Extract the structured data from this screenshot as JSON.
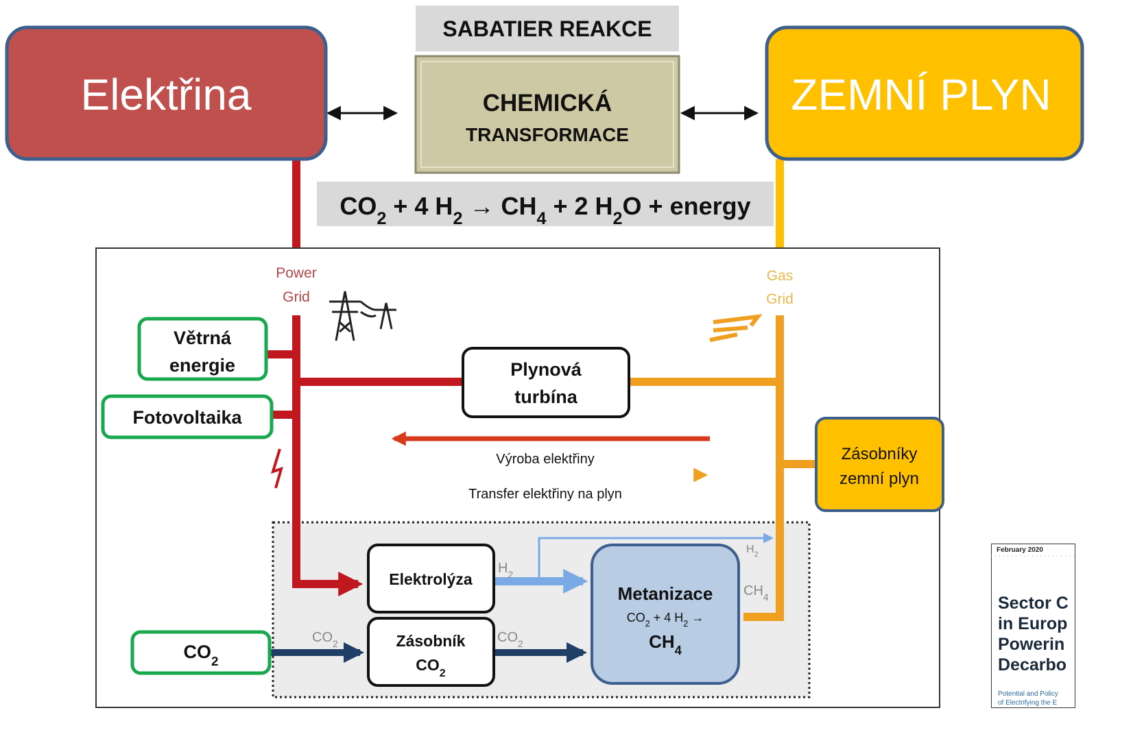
{
  "header": {
    "title": "SABATIER REAKCE"
  },
  "transform": {
    "line1": "CHEMICKÁ",
    "line2": "TRANSFORMACE"
  },
  "left_node": "Elektřina",
  "right_node": "ZEMNÍ PLYN",
  "equation": [
    "CO",
    "2",
    " + 4 H",
    "2",
    " → CH",
    "4",
    " + 2 H",
    "2",
    "O + energy"
  ],
  "grid_labels": {
    "power": [
      "Power",
      "Grid"
    ],
    "gas": [
      "Gas",
      "Grid"
    ]
  },
  "sources": {
    "wind": [
      "Větrná",
      "energie"
    ],
    "pv": "Fotovoltaika",
    "co2": [
      "CO",
      "2"
    ]
  },
  "turbine": [
    "Plynová",
    "turbína"
  ],
  "flows": {
    "to_power": "Výroba elektřiny",
    "to_gas": "Transfer elektřiny na plyn"
  },
  "storage_gas": [
    "Zásobníky",
    "zemní plyn"
  ],
  "electrolysis": "Elektrolýza",
  "co2_storage": [
    "Zásobník",
    "CO",
    "2"
  ],
  "methanation": {
    "title": "Metanizace",
    "formula": [
      "CO",
      "2",
      " + 4 H",
      "2",
      " →"
    ],
    "product": [
      "CH",
      "4"
    ]
  },
  "pipe_labels": {
    "h2_top": [
      "H",
      "2"
    ],
    "h2": [
      "H",
      "2"
    ],
    "co2_in": [
      "CO",
      "2"
    ],
    "co2_out": [
      "CO",
      "2"
    ],
    "ch4": [
      "CH",
      "4"
    ]
  },
  "report": {
    "date": "February 2020",
    "title": [
      "Sector C",
      "in Europ",
      "Powerin",
      "Decarbo"
    ],
    "subtitle": [
      "Potential and Policy",
      "of Electrifying the E"
    ]
  }
}
